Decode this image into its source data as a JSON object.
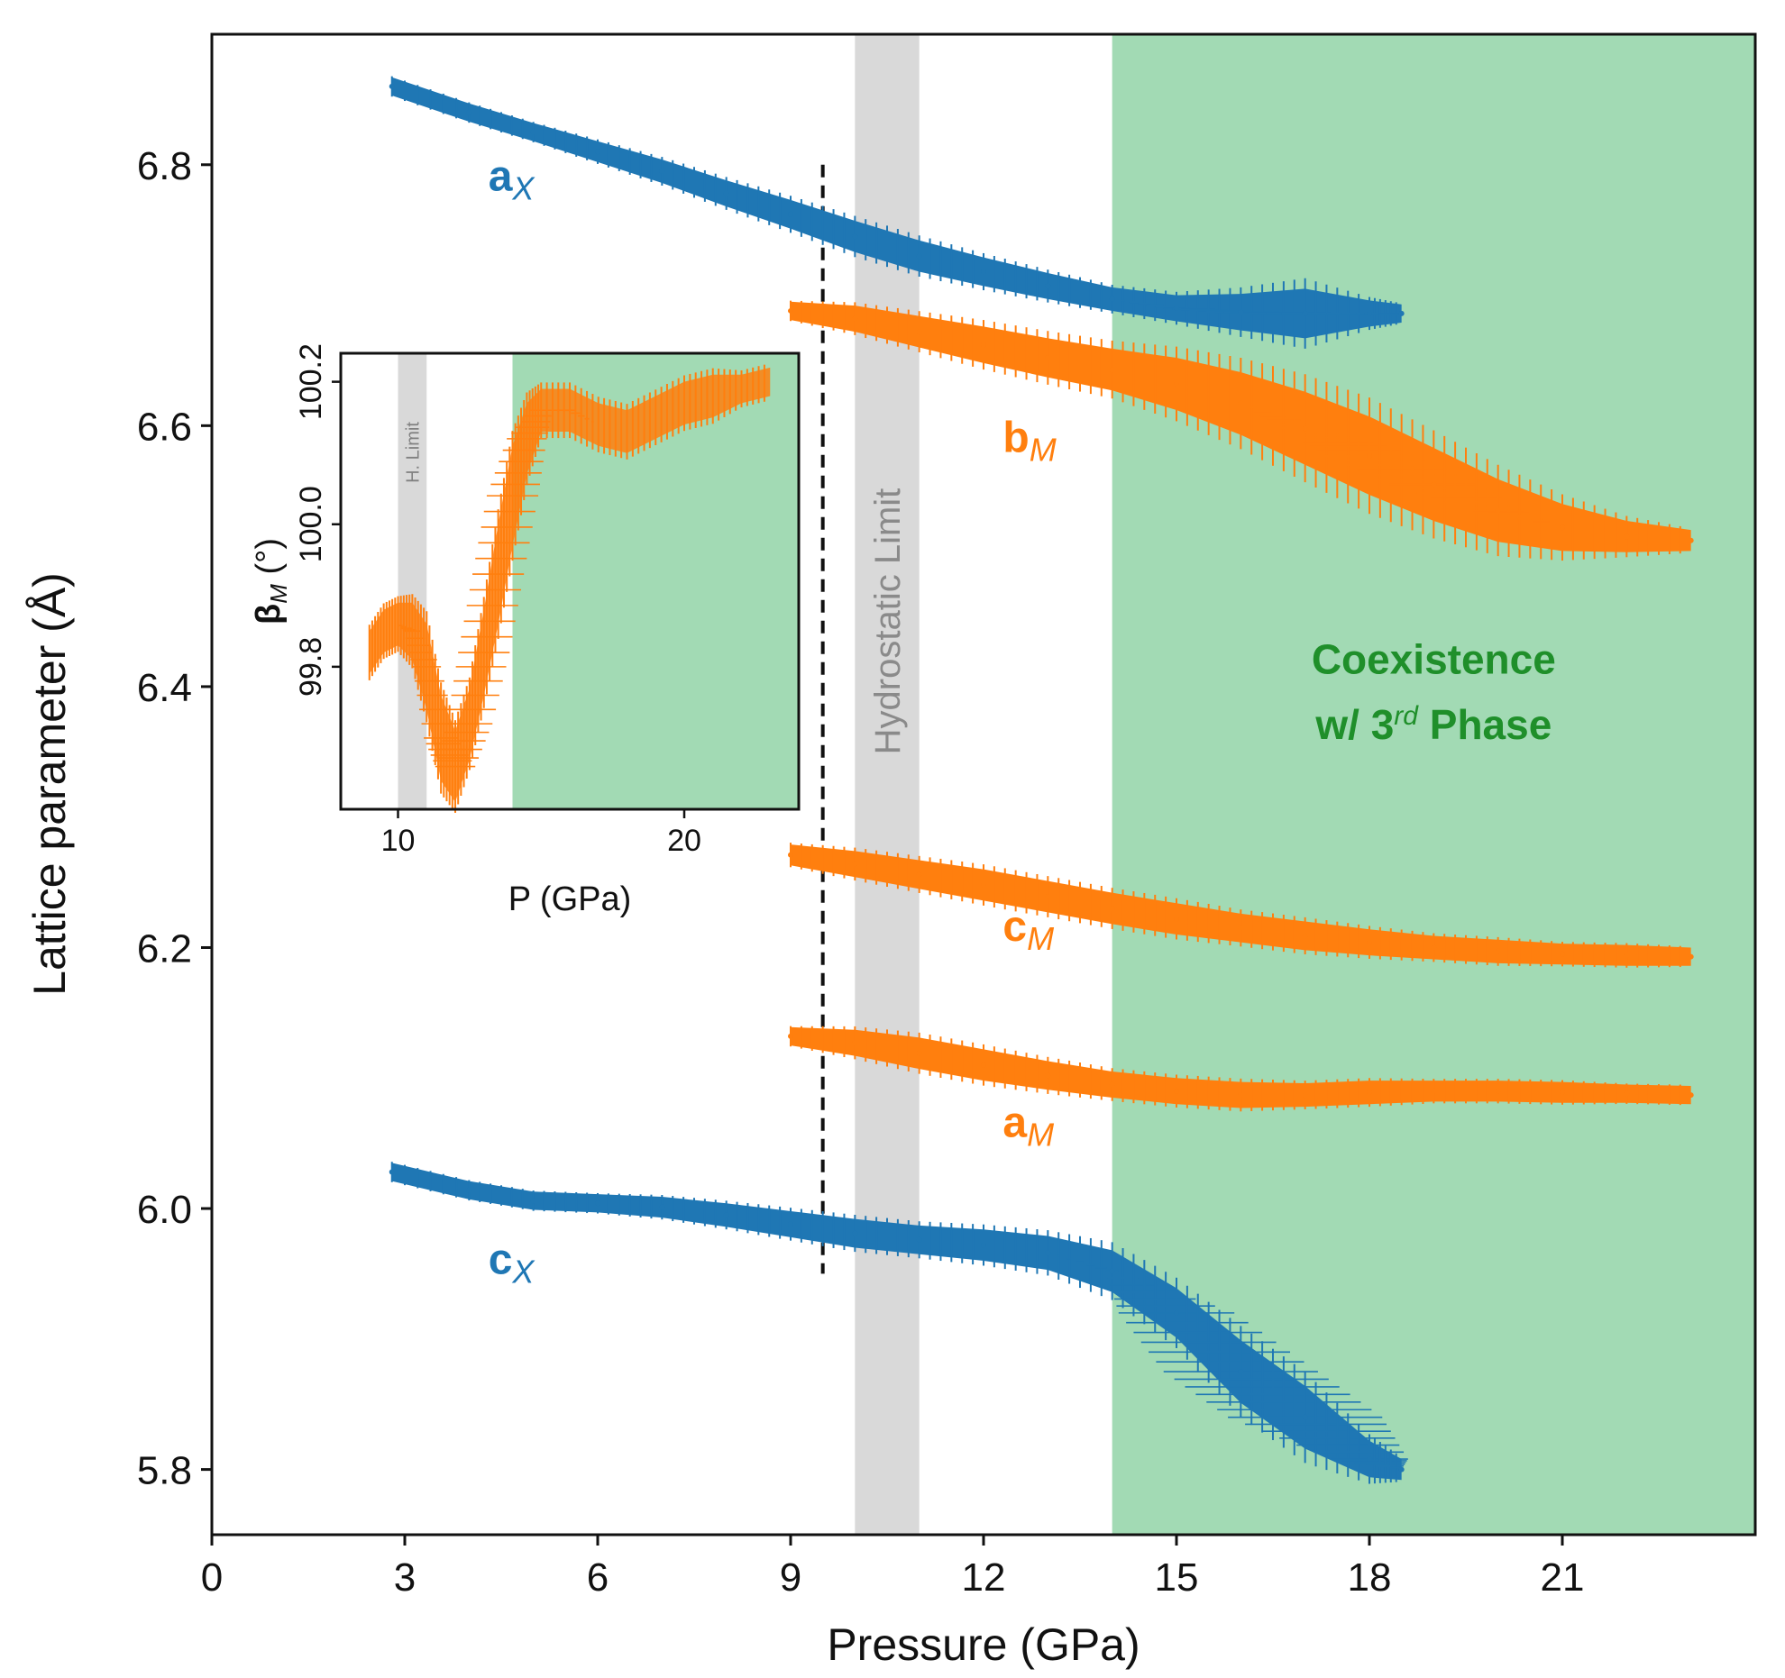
{
  "chart_data": {
    "type": "scatter",
    "xlabel": "Pressure (GPa)",
    "ylabel": "Lattice parameter (Å)",
    "xlim": [
      0,
      24
    ],
    "ylim": [
      5.75,
      6.9
    ],
    "x_ticks": [
      "0",
      "3",
      "6",
      "9",
      "12",
      "15",
      "18",
      "21"
    ],
    "y_ticks": [
      "5.8",
      "6.0",
      "6.2",
      "6.4",
      "6.6",
      "6.8"
    ],
    "regions": [
      {
        "name": "Hydrostatic Limit",
        "x0": 10.0,
        "x1": 11.0,
        "color": "#d9d9d9"
      },
      {
        "name": "Coexistence w/ 3rd Phase",
        "x0": 14.0,
        "x1": 24.0,
        "color": "#a2dab4"
      }
    ],
    "vline": {
      "x": 9.5,
      "y0": 5.95,
      "y1": 6.8,
      "style": "dashed"
    },
    "annotations": {
      "hydrostatic": "Hydrostatic Limit",
      "coexistence_line1": "Coexistence",
      "coexistence_line2_prefix": "w/ 3",
      "coexistence_line2_sup": "rd",
      "coexistence_line2_suffix": " Phase"
    },
    "series": [
      {
        "name": "aX",
        "label_main": "a",
        "label_sub": "X",
        "color": "#1f77b4",
        "label_pos": [
          4.3,
          6.78
        ],
        "x": [
          2.8,
          4,
          5,
          6,
          7,
          8,
          9,
          10,
          11,
          12,
          13,
          14,
          15,
          16,
          17,
          18,
          18.5
        ],
        "y": [
          6.86,
          6.84,
          6.825,
          6.81,
          6.795,
          6.778,
          6.762,
          6.745,
          6.73,
          6.718,
          6.707,
          6.697,
          6.69,
          6.687,
          6.686,
          6.686,
          6.686
        ],
        "err": [
          0.003,
          0.003,
          0.003,
          0.004,
          0.005,
          0.006,
          0.007,
          0.008,
          0.008,
          0.007,
          0.006,
          0.005,
          0.006,
          0.01,
          0.015,
          0.006,
          0.003
        ],
        "xerr": [
          0,
          0,
          0,
          0,
          0,
          0,
          0,
          0,
          0,
          0,
          0,
          0,
          0.2,
          0.4,
          0.6,
          0.2,
          0
        ]
      },
      {
        "name": "bM",
        "label_main": "b",
        "label_sub": "M",
        "color": "#ff7f0e",
        "label_pos": [
          12.3,
          6.58
        ],
        "x": [
          9,
          10,
          11,
          12,
          13,
          14,
          15,
          16,
          17,
          18,
          19,
          20,
          21,
          22,
          23
        ],
        "y": [
          6.688,
          6.682,
          6.672,
          6.662,
          6.652,
          6.643,
          6.632,
          6.617,
          6.598,
          6.577,
          6.555,
          6.535,
          6.522,
          6.515,
          6.512
        ],
        "err": [
          0.003,
          0.006,
          0.008,
          0.01,
          0.011,
          0.012,
          0.016,
          0.02,
          0.024,
          0.026,
          0.024,
          0.02,
          0.014,
          0.008,
          0.004
        ],
        "xerr": [
          0,
          0,
          0,
          0,
          0,
          0,
          0,
          0,
          0.4,
          0.7,
          0.7,
          0.4,
          0,
          0,
          0
        ]
      },
      {
        "name": "cM",
        "label_main": "c",
        "label_sub": "M",
        "color": "#ff7f0e",
        "label_pos": [
          12.3,
          6.205
        ],
        "x": [
          9,
          10,
          11,
          12,
          13,
          14,
          15,
          16,
          17,
          18,
          19,
          20,
          21,
          22,
          23
        ],
        "y": [
          6.271,
          6.264,
          6.256,
          6.248,
          6.239,
          6.23,
          6.222,
          6.215,
          6.209,
          6.204,
          6.2,
          6.197,
          6.195,
          6.194,
          6.193
        ],
        "err": [
          0.004,
          0.006,
          0.007,
          0.008,
          0.008,
          0.008,
          0.008,
          0.007,
          0.007,
          0.006,
          0.005,
          0.005,
          0.004,
          0.004,
          0.003
        ],
        "xerr": [
          0,
          0,
          0,
          0,
          0,
          0,
          0,
          0,
          0,
          0,
          0,
          0,
          0,
          0,
          0
        ]
      },
      {
        "name": "aM",
        "label_main": "a",
        "label_sub": "M",
        "color": "#ff7f0e",
        "label_pos": [
          12.3,
          6.055
        ],
        "x": [
          9,
          10,
          11,
          12,
          13,
          14,
          15,
          16,
          17,
          18,
          19,
          20,
          21,
          22,
          23
        ],
        "y": [
          6.132,
          6.127,
          6.119,
          6.11,
          6.102,
          6.095,
          6.09,
          6.087,
          6.087,
          6.089,
          6.09,
          6.09,
          6.089,
          6.088,
          6.087
        ],
        "err": [
          0.003,
          0.006,
          0.008,
          0.008,
          0.007,
          0.006,
          0.006,
          0.006,
          0.005,
          0.005,
          0.004,
          0.004,
          0.004,
          0.003,
          0.003
        ],
        "xerr": [
          0,
          0,
          0,
          0,
          0,
          0,
          0,
          0,
          0,
          0,
          0,
          0,
          0,
          0,
          0
        ]
      },
      {
        "name": "cX",
        "label_main": "c",
        "label_sub": "X",
        "color": "#1f77b4",
        "label_pos": [
          4.3,
          5.95
        ],
        "x": [
          2.8,
          4,
          5,
          6,
          7,
          8,
          9,
          10,
          11,
          12,
          13,
          14,
          15,
          16,
          17,
          18,
          18.5
        ],
        "y": [
          6.028,
          6.014,
          6.006,
          6.004,
          6.001,
          5.995,
          5.988,
          5.981,
          5.976,
          5.972,
          5.966,
          5.952,
          5.92,
          5.875,
          5.84,
          5.808,
          5.8
        ],
        "err": [
          0.003,
          0.003,
          0.003,
          0.003,
          0.004,
          0.005,
          0.006,
          0.007,
          0.007,
          0.008,
          0.009,
          0.012,
          0.015,
          0.02,
          0.02,
          0.01,
          0.004
        ],
        "xerr": [
          0,
          0,
          0,
          0,
          0,
          0,
          0,
          0,
          0,
          0,
          0,
          0.1,
          0.9,
          1.2,
          1.2,
          0.6,
          0
        ]
      }
    ],
    "inset": {
      "xlabel": "P (GPa)",
      "ylabel_main": "β",
      "ylabel_sub": "M",
      "ylabel_unit": " (°)",
      "xlim": [
        8.0,
        24.0
      ],
      "ylim": [
        99.6,
        100.24
      ],
      "x_ticks": [
        "10",
        "20"
      ],
      "y_ticks": [
        "99.8",
        "100.0",
        "100.2"
      ],
      "h_limit_label": "H. Limit",
      "regions": [
        {
          "name": "H. Limit",
          "x0": 10.0,
          "x1": 11.0,
          "color": "#d9d9d9"
        },
        {
          "name": "coexistence",
          "x0": 14.0,
          "x1": 24.0,
          "color": "#a2dab4"
        }
      ],
      "series": {
        "color": "#ff7f0e",
        "x": [
          9.0,
          9.5,
          10.0,
          10.5,
          11.0,
          11.5,
          12.0,
          12.5,
          13.0,
          13.5,
          14.0,
          14.5,
          15.0,
          16.0,
          17.0,
          18.0,
          19.0,
          20.0,
          21.0,
          22.0,
          23.0
        ],
        "y": [
          99.82,
          99.85,
          99.86,
          99.85,
          99.8,
          99.7,
          99.66,
          99.72,
          99.82,
          99.93,
          100.04,
          100.12,
          100.16,
          100.16,
          100.14,
          100.13,
          100.15,
          100.17,
          100.18,
          100.19,
          100.2
        ],
        "err": [
          0.03,
          0.03,
          0.03,
          0.04,
          0.06,
          0.06,
          0.05,
          0.05,
          0.06,
          0.07,
          0.07,
          0.05,
          0.03,
          0.03,
          0.03,
          0.03,
          0.03,
          0.03,
          0.03,
          0.02,
          0.02
        ],
        "xerr": [
          0,
          0,
          0,
          0.3,
          0.5,
          0.6,
          0.7,
          0.8,
          0.9,
          0.9,
          0.9,
          0.7,
          0.4,
          0.2,
          0,
          0,
          0,
          0,
          0,
          0,
          0
        ]
      }
    }
  }
}
